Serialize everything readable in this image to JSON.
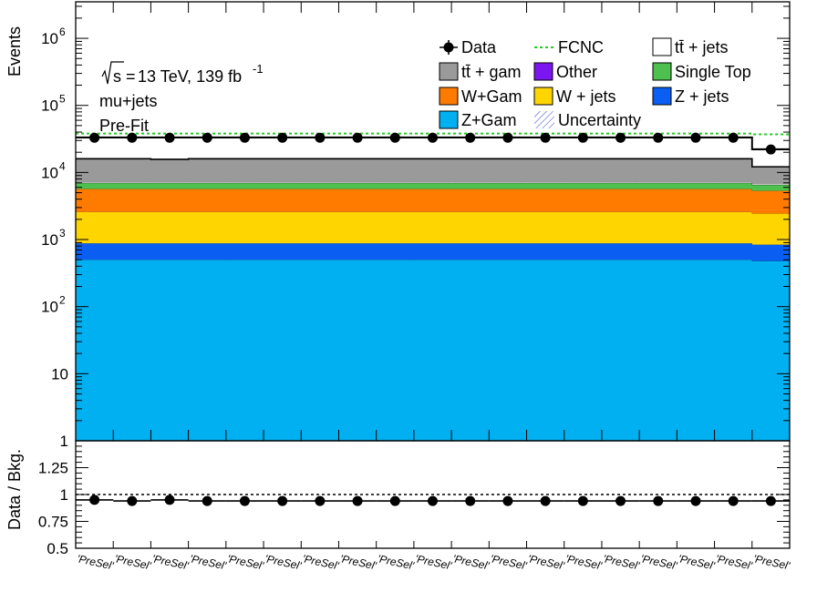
{
  "chart_data": [
    {
      "type": "bar",
      "stacked": true,
      "yscale": "log",
      "ylabel": "Events",
      "ylim": [
        1,
        3500000
      ],
      "categories": [
        "'PreSel'",
        "'PreSel'",
        "'PreSel'",
        "'PreSel'",
        "'PreSel'",
        "'PreSel'",
        "'PreSel'",
        "'PreSel'",
        "'PreSel'",
        "'PreSel'",
        "'PreSel'",
        "'PreSel'",
        "'PreSel'",
        "'PreSel'",
        "'PreSel'",
        "'PreSel'",
        "'PreSel'",
        "'PreSel'",
        "'PreSel'"
      ],
      "annotations": [
        "13 TeV, 139 fb",
        "-1",
        "mu+jets",
        "Pre-Fit"
      ],
      "annotation_sqrt_s": "s",
      "annotation_eq": " = ",
      "legend_placement": "top-right",
      "series": [
        {
          "name": "Z+Gam",
          "color": "#00b0f0",
          "values": [
            500,
            500,
            500,
            500,
            500,
            500,
            500,
            500,
            500,
            500,
            500,
            500,
            500,
            500,
            500,
            500,
            500,
            500,
            480
          ]
        },
        {
          "name": "Z + jets",
          "color": "#0a5ff2",
          "values": [
            380,
            380,
            380,
            380,
            380,
            380,
            380,
            380,
            380,
            380,
            380,
            380,
            380,
            380,
            380,
            380,
            380,
            380,
            360
          ]
        },
        {
          "name": "W + jets",
          "color": "#ffd500",
          "values": [
            1700,
            1700,
            1700,
            1700,
            1700,
            1700,
            1700,
            1700,
            1700,
            1700,
            1700,
            1700,
            1700,
            1700,
            1700,
            1700,
            1700,
            1700,
            1600
          ]
        },
        {
          "name": "W+Gam",
          "color": "#ff7b00",
          "values": [
            3100,
            3100,
            3100,
            3100,
            3100,
            3100,
            3100,
            3100,
            3100,
            3100,
            3100,
            3100,
            3100,
            3100,
            3100,
            3100,
            3100,
            3100,
            2900
          ]
        },
        {
          "name": "Single Top",
          "color": "#4ec04e",
          "values": [
            1300,
            1300,
            1300,
            1300,
            1300,
            1300,
            1300,
            1300,
            1300,
            1300,
            1300,
            1300,
            1300,
            1300,
            1300,
            1300,
            1300,
            1300,
            1200
          ]
        },
        {
          "name": "Other",
          "color": "#7b16f0",
          "values": [
            20,
            20,
            20,
            20,
            20,
            20,
            20,
            20,
            20,
            20,
            20,
            20,
            20,
            20,
            20,
            20,
            20,
            20,
            20
          ]
        },
        {
          "name": "tt̄ + jets",
          "color": "#ffffff",
          "values": [
            200,
            200,
            200,
            200,
            200,
            200,
            200,
            200,
            200,
            200,
            200,
            200,
            200,
            200,
            200,
            200,
            200,
            200,
            200
          ]
        },
        {
          "name": "tt̄ +  gam",
          "color": "#9a9a9a",
          "values": [
            8800,
            8800,
            8500,
            8800,
            8800,
            8800,
            8800,
            8800,
            8800,
            8800,
            8800,
            8800,
            8800,
            8800,
            8800,
            8800,
            8800,
            8800,
            5400
          ]
        }
      ],
      "data": {
        "name": "Data",
        "values": [
          33000,
          33000,
          33000,
          33000,
          33000,
          33000,
          33000,
          33000,
          33000,
          33000,
          33000,
          33000,
          33000,
          33000,
          33000,
          33000,
          33000,
          33000,
          22000
        ]
      },
      "fcnc": {
        "name": "FCNC",
        "color": "#22cc22",
        "values": [
          38000,
          38000,
          38000,
          38000,
          38000,
          38000,
          38000,
          38000,
          38000,
          38000,
          38000,
          38000,
          38000,
          38000,
          38000,
          38000,
          38000,
          38000,
          37000
        ]
      },
      "uncertainty": {
        "name": "Uncertainty"
      },
      "yticks": [
        {
          "v": 1,
          "label": "1"
        },
        {
          "v": 10,
          "label": "10"
        },
        {
          "v": 100,
          "label": "10",
          "exp": "2"
        },
        {
          "v": 1000,
          "label": "10",
          "exp": "3"
        },
        {
          "v": 10000,
          "label": "10",
          "exp": "4"
        },
        {
          "v": 100000,
          "label": "10",
          "exp": "5"
        },
        {
          "v": 1000000,
          "label": "10",
          "exp": "6"
        }
      ]
    },
    {
      "type": "scatter",
      "ylabel": "Data / Bkg.",
      "ylim": [
        0.5,
        1.5
      ],
      "reference_line": 1,
      "values": [
        0.95,
        0.94,
        0.95,
        0.94,
        0.94,
        0.94,
        0.94,
        0.94,
        0.94,
        0.94,
        0.94,
        0.94,
        0.94,
        0.94,
        0.94,
        0.94,
        0.94,
        0.94,
        0.94
      ],
      "yticks": [
        {
          "v": 0.5,
          "label": "0.5"
        },
        {
          "v": 0.75,
          "label": "0.75"
        },
        {
          "v": 1,
          "label": "1"
        },
        {
          "v": 1.25,
          "label": "1.25"
        }
      ]
    }
  ]
}
